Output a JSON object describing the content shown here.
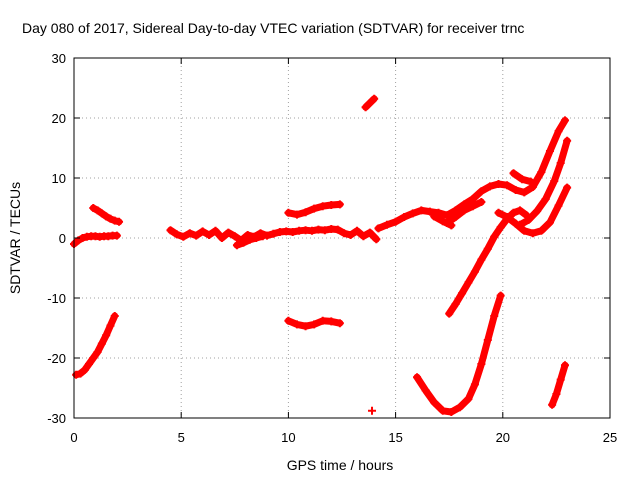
{
  "chart_data": {
    "type": "scatter",
    "title": "Day 080 of 2017, Sidereal Day-to-day VTEC variation (SDTVAR) for receiver trnc",
    "xlabel": "GPS time / hours",
    "ylabel": "SDTVAR / TECUs",
    "xlim": [
      0,
      25
    ],
    "ylim": [
      -30,
      30
    ],
    "xticks": [
      0,
      5,
      10,
      15,
      20,
      25
    ],
    "yticks": [
      -30,
      -20,
      -10,
      0,
      10,
      20,
      30
    ],
    "grid": true,
    "marker": "plus",
    "color": "#ff0000",
    "series": [
      {
        "name": "arc-01",
        "points": [
          [
            0.0,
            -1.0
          ],
          [
            0.2,
            -0.4
          ],
          [
            0.4,
            0.0
          ],
          [
            0.6,
            0.2
          ],
          [
            0.8,
            0.3
          ],
          [
            1.0,
            0.3
          ],
          [
            1.2,
            0.2
          ],
          [
            1.4,
            0.3
          ],
          [
            1.6,
            0.3
          ],
          [
            1.8,
            0.4
          ],
          [
            2.0,
            0.4
          ]
        ]
      },
      {
        "name": "arc-02",
        "points": [
          [
            0.9,
            5.0
          ],
          [
            1.1,
            4.6
          ],
          [
            1.3,
            4.1
          ],
          [
            1.5,
            3.6
          ],
          [
            1.7,
            3.2
          ],
          [
            1.9,
            2.9
          ],
          [
            2.1,
            2.7
          ]
        ]
      },
      {
        "name": "arc-03",
        "points": [
          [
            0.1,
            -22.8
          ],
          [
            0.3,
            -22.6
          ],
          [
            0.5,
            -22.0
          ],
          [
            0.7,
            -21.0
          ],
          [
            0.9,
            -20.0
          ],
          [
            1.1,
            -19.0
          ],
          [
            1.3,
            -17.6
          ],
          [
            1.5,
            -16.2
          ],
          [
            1.7,
            -14.6
          ],
          [
            1.9,
            -13.0
          ]
        ]
      },
      {
        "name": "arc-04",
        "points": [
          [
            4.5,
            1.3
          ],
          [
            4.8,
            0.6
          ],
          [
            5.1,
            0.2
          ],
          [
            5.4,
            0.8
          ],
          [
            5.7,
            0.4
          ],
          [
            6.0,
            1.1
          ],
          [
            6.3,
            0.5
          ],
          [
            6.6,
            1.2
          ],
          [
            6.9,
            0.0
          ],
          [
            7.2,
            0.9
          ],
          [
            7.5,
            0.3
          ],
          [
            7.8,
            -0.4
          ],
          [
            8.1,
            0.5
          ],
          [
            8.4,
            0.2
          ],
          [
            8.7,
            0.8
          ],
          [
            9.0,
            0.4
          ],
          [
            9.3,
            0.7
          ],
          [
            9.6,
            1.0
          ],
          [
            9.9,
            1.1
          ],
          [
            10.2,
            1.0
          ],
          [
            10.5,
            1.2
          ],
          [
            10.8,
            1.3
          ],
          [
            11.1,
            1.2
          ],
          [
            11.4,
            1.4
          ],
          [
            11.7,
            1.3
          ],
          [
            12.0,
            1.5
          ],
          [
            12.3,
            1.4
          ],
          [
            12.6,
            0.8
          ],
          [
            12.9,
            0.5
          ],
          [
            13.2,
            1.2
          ],
          [
            13.5,
            0.3
          ],
          [
            13.8,
            0.9
          ],
          [
            14.1,
            -0.2
          ]
        ]
      },
      {
        "name": "arc-05",
        "points": [
          [
            7.6,
            -1.2
          ],
          [
            7.9,
            -0.8
          ],
          [
            8.2,
            -0.3
          ],
          [
            8.5,
            0.0
          ],
          [
            8.8,
            0.3
          ]
        ]
      },
      {
        "name": "arc-06",
        "points": [
          [
            10.0,
            4.2
          ],
          [
            10.4,
            3.9
          ],
          [
            10.8,
            4.3
          ],
          [
            11.2,
            4.9
          ],
          [
            11.6,
            5.3
          ],
          [
            12.0,
            5.5
          ],
          [
            12.4,
            5.6
          ]
        ]
      },
      {
        "name": "arc-07",
        "points": [
          [
            10.0,
            -13.8
          ],
          [
            10.4,
            -14.4
          ],
          [
            10.8,
            -14.7
          ],
          [
            11.2,
            -14.4
          ],
          [
            11.6,
            -13.8
          ],
          [
            12.0,
            -13.9
          ],
          [
            12.4,
            -14.2
          ]
        ]
      },
      {
        "name": "arc-08",
        "points": [
          [
            13.6,
            21.8
          ],
          [
            13.8,
            22.5
          ],
          [
            14.0,
            23.2
          ]
        ]
      },
      {
        "name": "arc-09",
        "points": [
          [
            13.9,
            -28.8
          ]
        ]
      },
      {
        "name": "arc-10",
        "points": [
          [
            14.2,
            1.6
          ],
          [
            14.6,
            2.2
          ],
          [
            15.0,
            2.7
          ],
          [
            15.4,
            3.5
          ],
          [
            15.8,
            4.1
          ],
          [
            16.2,
            4.6
          ],
          [
            16.6,
            4.4
          ],
          [
            17.0,
            4.2
          ],
          [
            17.4,
            3.8
          ],
          [
            17.8,
            4.6
          ],
          [
            18.2,
            5.6
          ],
          [
            18.6,
            6.5
          ],
          [
            19.0,
            7.8
          ],
          [
            19.4,
            8.6
          ],
          [
            19.8,
            9.0
          ],
          [
            20.2,
            8.8
          ],
          [
            20.6,
            8.0
          ],
          [
            21.0,
            7.6
          ],
          [
            21.4,
            8.5
          ],
          [
            21.8,
            11.0
          ],
          [
            22.2,
            14.5
          ],
          [
            22.6,
            17.8
          ],
          [
            22.9,
            19.6
          ]
        ]
      },
      {
        "name": "arc-11",
        "points": [
          [
            16.8,
            3.6
          ],
          [
            17.2,
            2.8
          ],
          [
            17.6,
            2.1
          ]
        ]
      },
      {
        "name": "arc-12",
        "points": [
          [
            17.4,
            2.5
          ],
          [
            17.8,
            3.5
          ],
          [
            18.2,
            4.6
          ],
          [
            18.6,
            5.3
          ],
          [
            19.0,
            6.0
          ]
        ]
      },
      {
        "name": "arc-13",
        "points": [
          [
            20.5,
            10.8
          ],
          [
            20.9,
            9.8
          ],
          [
            21.3,
            9.4
          ]
        ]
      },
      {
        "name": "arc-14",
        "points": [
          [
            17.5,
            -12.6
          ],
          [
            17.8,
            -11.0
          ],
          [
            18.1,
            -9.2
          ],
          [
            18.4,
            -7.4
          ],
          [
            18.7,
            -5.6
          ],
          [
            19.0,
            -3.6
          ],
          [
            19.3,
            -1.8
          ],
          [
            19.6,
            0.2
          ],
          [
            19.9,
            1.8
          ],
          [
            20.2,
            3.2
          ],
          [
            20.5,
            4.2
          ],
          [
            20.8,
            4.6
          ],
          [
            21.1,
            3.8
          ]
        ]
      },
      {
        "name": "arc-15",
        "points": [
          [
            16.0,
            -23.2
          ],
          [
            16.4,
            -25.4
          ],
          [
            16.8,
            -27.4
          ],
          [
            17.2,
            -28.8
          ],
          [
            17.6,
            -29.0
          ],
          [
            18.0,
            -28.2
          ],
          [
            18.4,
            -26.8
          ],
          [
            18.7,
            -24.4
          ],
          [
            19.0,
            -21.0
          ],
          [
            19.3,
            -17.0
          ],
          [
            19.6,
            -13.0
          ],
          [
            19.9,
            -9.6
          ]
        ]
      },
      {
        "name": "arc-16",
        "points": [
          [
            19.8,
            4.2
          ],
          [
            20.2,
            3.5
          ],
          [
            20.6,
            2.4
          ],
          [
            21.0,
            1.2
          ],
          [
            21.4,
            0.8
          ],
          [
            21.8,
            1.2
          ],
          [
            22.2,
            2.6
          ],
          [
            22.6,
            5.4
          ],
          [
            23.0,
            8.4
          ]
        ]
      },
      {
        "name": "arc-17",
        "points": [
          [
            20.8,
            2.2
          ],
          [
            21.2,
            3.0
          ],
          [
            21.6,
            4.5
          ],
          [
            22.0,
            6.5
          ],
          [
            22.4,
            9.5
          ],
          [
            22.7,
            12.5
          ],
          [
            23.0,
            16.2
          ]
        ]
      },
      {
        "name": "arc-18",
        "points": [
          [
            22.3,
            -27.8
          ],
          [
            22.5,
            -26.0
          ],
          [
            22.7,
            -23.6
          ],
          [
            22.9,
            -21.2
          ]
        ]
      }
    ]
  }
}
